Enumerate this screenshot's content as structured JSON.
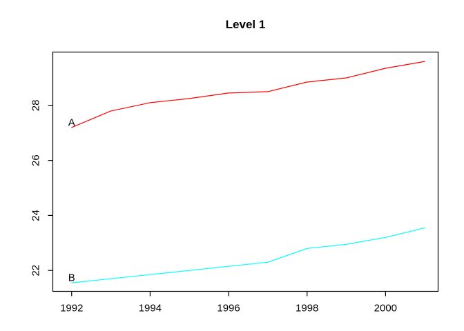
{
  "chart_data": {
    "type": "line",
    "title": "Level 1",
    "xlabel": "",
    "ylabel": "",
    "x": [
      1992,
      1993,
      1994,
      1995,
      1996,
      1997,
      1998,
      1999,
      2000,
      2001
    ],
    "series": [
      {
        "name": "A",
        "point_label": "A",
        "color": "#ff0000",
        "values": [
          27.2,
          27.8,
          28.1,
          28.25,
          28.45,
          28.5,
          28.85,
          29.0,
          29.35,
          29.6
        ]
      },
      {
        "name": "B",
        "point_label": "B",
        "color": "#00ffff",
        "values": [
          21.55,
          21.7,
          21.85,
          22.0,
          22.15,
          22.3,
          22.8,
          22.95,
          23.2,
          23.55
        ]
      }
    ],
    "x_ticks": [
      1992,
      1994,
      1996,
      1998,
      2000
    ],
    "y_ticks": [
      22,
      24,
      26,
      28
    ],
    "xlim": [
      1991.52,
      2001.34
    ],
    "ylim": [
      21.24,
      29.94
    ],
    "grid": "off",
    "legend": "none",
    "axis_color": "#000000",
    "background_color": "#ffffff"
  }
}
